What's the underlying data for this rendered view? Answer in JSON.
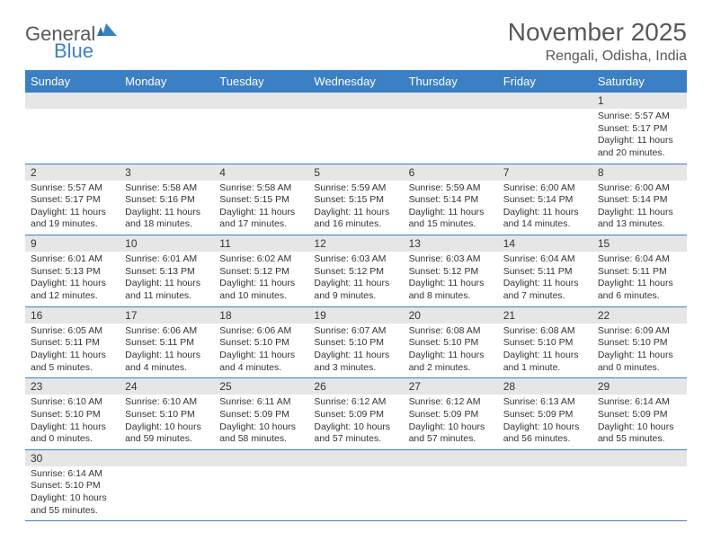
{
  "logo": {
    "textA": "General",
    "textB": "Blue"
  },
  "title": "November 2025",
  "location": "Rengali, Odisha, India",
  "colors": {
    "header_bg": "#3b7fc4",
    "header_text": "#ffffff",
    "daynum_bg": "#e6e6e6",
    "text": "#333333",
    "logo_gray": "#58595b",
    "logo_blue": "#3b82c4",
    "row_border": "#3b7fc4"
  },
  "weekdays": [
    "Sunday",
    "Monday",
    "Tuesday",
    "Wednesday",
    "Thursday",
    "Friday",
    "Saturday"
  ],
  "weeks": [
    [
      null,
      null,
      null,
      null,
      null,
      null,
      {
        "n": "1",
        "sr": "Sunrise: 5:57 AM",
        "ss": "Sunset: 5:17 PM",
        "d1": "Daylight: 11 hours",
        "d2": "and 20 minutes."
      }
    ],
    [
      {
        "n": "2",
        "sr": "Sunrise: 5:57 AM",
        "ss": "Sunset: 5:17 PM",
        "d1": "Daylight: 11 hours",
        "d2": "and 19 minutes."
      },
      {
        "n": "3",
        "sr": "Sunrise: 5:58 AM",
        "ss": "Sunset: 5:16 PM",
        "d1": "Daylight: 11 hours",
        "d2": "and 18 minutes."
      },
      {
        "n": "4",
        "sr": "Sunrise: 5:58 AM",
        "ss": "Sunset: 5:15 PM",
        "d1": "Daylight: 11 hours",
        "d2": "and 17 minutes."
      },
      {
        "n": "5",
        "sr": "Sunrise: 5:59 AM",
        "ss": "Sunset: 5:15 PM",
        "d1": "Daylight: 11 hours",
        "d2": "and 16 minutes."
      },
      {
        "n": "6",
        "sr": "Sunrise: 5:59 AM",
        "ss": "Sunset: 5:14 PM",
        "d1": "Daylight: 11 hours",
        "d2": "and 15 minutes."
      },
      {
        "n": "7",
        "sr": "Sunrise: 6:00 AM",
        "ss": "Sunset: 5:14 PM",
        "d1": "Daylight: 11 hours",
        "d2": "and 14 minutes."
      },
      {
        "n": "8",
        "sr": "Sunrise: 6:00 AM",
        "ss": "Sunset: 5:14 PM",
        "d1": "Daylight: 11 hours",
        "d2": "and 13 minutes."
      }
    ],
    [
      {
        "n": "9",
        "sr": "Sunrise: 6:01 AM",
        "ss": "Sunset: 5:13 PM",
        "d1": "Daylight: 11 hours",
        "d2": "and 12 minutes."
      },
      {
        "n": "10",
        "sr": "Sunrise: 6:01 AM",
        "ss": "Sunset: 5:13 PM",
        "d1": "Daylight: 11 hours",
        "d2": "and 11 minutes."
      },
      {
        "n": "11",
        "sr": "Sunrise: 6:02 AM",
        "ss": "Sunset: 5:12 PM",
        "d1": "Daylight: 11 hours",
        "d2": "and 10 minutes."
      },
      {
        "n": "12",
        "sr": "Sunrise: 6:03 AM",
        "ss": "Sunset: 5:12 PM",
        "d1": "Daylight: 11 hours",
        "d2": "and 9 minutes."
      },
      {
        "n": "13",
        "sr": "Sunrise: 6:03 AM",
        "ss": "Sunset: 5:12 PM",
        "d1": "Daylight: 11 hours",
        "d2": "and 8 minutes."
      },
      {
        "n": "14",
        "sr": "Sunrise: 6:04 AM",
        "ss": "Sunset: 5:11 PM",
        "d1": "Daylight: 11 hours",
        "d2": "and 7 minutes."
      },
      {
        "n": "15",
        "sr": "Sunrise: 6:04 AM",
        "ss": "Sunset: 5:11 PM",
        "d1": "Daylight: 11 hours",
        "d2": "and 6 minutes."
      }
    ],
    [
      {
        "n": "16",
        "sr": "Sunrise: 6:05 AM",
        "ss": "Sunset: 5:11 PM",
        "d1": "Daylight: 11 hours",
        "d2": "and 5 minutes."
      },
      {
        "n": "17",
        "sr": "Sunrise: 6:06 AM",
        "ss": "Sunset: 5:11 PM",
        "d1": "Daylight: 11 hours",
        "d2": "and 4 minutes."
      },
      {
        "n": "18",
        "sr": "Sunrise: 6:06 AM",
        "ss": "Sunset: 5:10 PM",
        "d1": "Daylight: 11 hours",
        "d2": "and 4 minutes."
      },
      {
        "n": "19",
        "sr": "Sunrise: 6:07 AM",
        "ss": "Sunset: 5:10 PM",
        "d1": "Daylight: 11 hours",
        "d2": "and 3 minutes."
      },
      {
        "n": "20",
        "sr": "Sunrise: 6:08 AM",
        "ss": "Sunset: 5:10 PM",
        "d1": "Daylight: 11 hours",
        "d2": "and 2 minutes."
      },
      {
        "n": "21",
        "sr": "Sunrise: 6:08 AM",
        "ss": "Sunset: 5:10 PM",
        "d1": "Daylight: 11 hours",
        "d2": "and 1 minute."
      },
      {
        "n": "22",
        "sr": "Sunrise: 6:09 AM",
        "ss": "Sunset: 5:10 PM",
        "d1": "Daylight: 11 hours",
        "d2": "and 0 minutes."
      }
    ],
    [
      {
        "n": "23",
        "sr": "Sunrise: 6:10 AM",
        "ss": "Sunset: 5:10 PM",
        "d1": "Daylight: 11 hours",
        "d2": "and 0 minutes."
      },
      {
        "n": "24",
        "sr": "Sunrise: 6:10 AM",
        "ss": "Sunset: 5:10 PM",
        "d1": "Daylight: 10 hours",
        "d2": "and 59 minutes."
      },
      {
        "n": "25",
        "sr": "Sunrise: 6:11 AM",
        "ss": "Sunset: 5:09 PM",
        "d1": "Daylight: 10 hours",
        "d2": "and 58 minutes."
      },
      {
        "n": "26",
        "sr": "Sunrise: 6:12 AM",
        "ss": "Sunset: 5:09 PM",
        "d1": "Daylight: 10 hours",
        "d2": "and 57 minutes."
      },
      {
        "n": "27",
        "sr": "Sunrise: 6:12 AM",
        "ss": "Sunset: 5:09 PM",
        "d1": "Daylight: 10 hours",
        "d2": "and 57 minutes."
      },
      {
        "n": "28",
        "sr": "Sunrise: 6:13 AM",
        "ss": "Sunset: 5:09 PM",
        "d1": "Daylight: 10 hours",
        "d2": "and 56 minutes."
      },
      {
        "n": "29",
        "sr": "Sunrise: 6:14 AM",
        "ss": "Sunset: 5:09 PM",
        "d1": "Daylight: 10 hours",
        "d2": "and 55 minutes."
      }
    ],
    [
      {
        "n": "30",
        "sr": "Sunrise: 6:14 AM",
        "ss": "Sunset: 5:10 PM",
        "d1": "Daylight: 10 hours",
        "d2": "and 55 minutes."
      },
      null,
      null,
      null,
      null,
      null,
      null
    ]
  ]
}
